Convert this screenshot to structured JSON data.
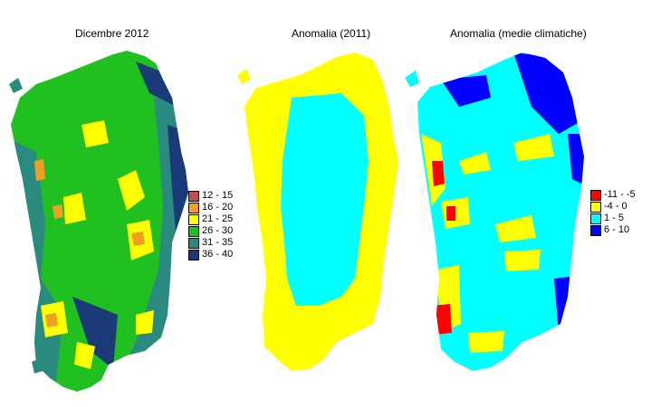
{
  "panels": [
    {
      "title": "Dicembre 2012",
      "legend": [
        {
          "label": "12 - 15",
          "color": "#c0504d"
        },
        {
          "label": "16 - 20",
          "color": "#f0a020"
        },
        {
          "label": "21 - 25",
          "color": "#ffff00"
        },
        {
          "label": "26 - 30",
          "color": "#20c020"
        },
        {
          "label": "31 - 35",
          "color": "#2a8a80"
        },
        {
          "label": "36 - 40",
          "color": "#1a3a78"
        }
      ]
    },
    {
      "title": "Anomalia (2011)",
      "colors": {
        "outer": "#ffff00",
        "inner": "#00ffff"
      }
    },
    {
      "title": "Anomalia (medie climatiche)",
      "legend": [
        {
          "label": "-11 - -5",
          "color": "#ff0000"
        },
        {
          "label": "-4 - 0",
          "color": "#ffff00"
        },
        {
          "label": "1 - 5",
          "color": "#00ffff"
        },
        {
          "label": "6 - 10",
          "color": "#0000ff"
        }
      ]
    }
  ]
}
